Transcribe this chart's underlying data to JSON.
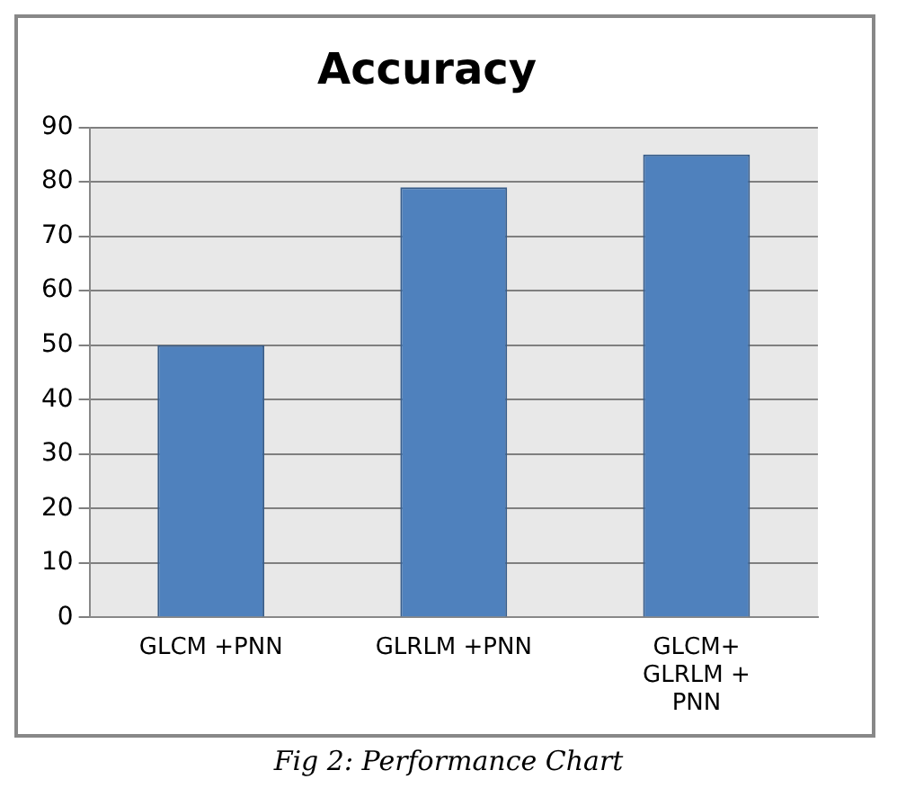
{
  "chart_data": {
    "type": "bar",
    "title": "Accuracy",
    "categories": [
      "GLCM +PNN",
      "GLRLM +PNN",
      "GLCM+\nGLRLM +\nPNN"
    ],
    "values": [
      50,
      79,
      85
    ],
    "color": "#4f81bd",
    "ylim": [
      0,
      90
    ],
    "yticks": [
      0,
      10,
      20,
      30,
      40,
      50,
      60,
      70,
      80,
      90
    ],
    "grid": "y",
    "annotations": [
      "Fig 2: Performance Chart"
    ]
  }
}
